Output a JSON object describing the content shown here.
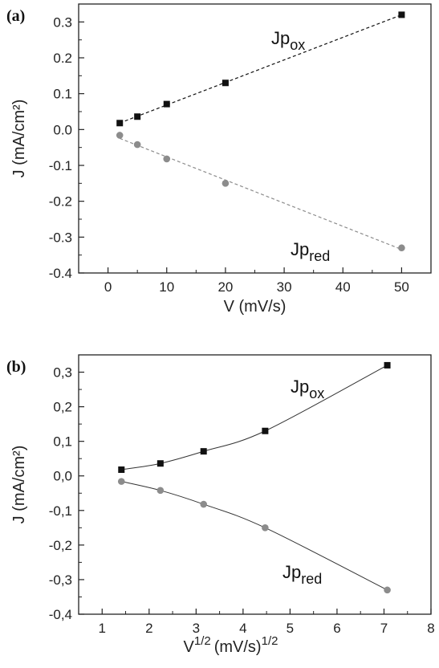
{
  "chart_data": [
    {
      "type": "scatter",
      "panel_label": "(a)",
      "xlabel": "V (mV/s)",
      "ylabel": "J (mA/cm²)",
      "xlim": [
        -5,
        55
      ],
      "ylim": [
        -0.4,
        0.35
      ],
      "xticks": [
        0,
        10,
        20,
        30,
        40,
        50
      ],
      "yticks": [
        -0.4,
        -0.3,
        -0.2,
        -0.1,
        0.0,
        0.1,
        0.2,
        0.3
      ],
      "xtick_labels": [
        "0",
        "10",
        "20",
        "30",
        "40",
        "50"
      ],
      "ytick_labels": [
        "-0.4",
        "-0.3",
        "-0.2",
        "-0.1",
        "0.0",
        "0.1",
        "0.2",
        "0.3"
      ],
      "fit": "linear-dashed",
      "series": [
        {
          "label_main": "Jp",
          "label_sub": "ox",
          "color": "#111111",
          "marker": "square",
          "x": [
            2,
            5,
            10,
            20,
            50
          ],
          "y": [
            0.018,
            0.036,
            0.071,
            0.13,
            0.32
          ]
        },
        {
          "label_main": "Jp",
          "label_sub": "red",
          "color": "#8c8c8c",
          "marker": "circle",
          "x": [
            2,
            5,
            10,
            20,
            50
          ],
          "y": [
            -0.016,
            -0.042,
            -0.082,
            -0.15,
            -0.33
          ]
        }
      ]
    },
    {
      "type": "scatter",
      "panel_label": "(b)",
      "xlabel_main": "V",
      "xlabel_sup": "1/2",
      "xlabel_unit": "(mV/s)",
      "xlabel_unit_sup": "1/2",
      "ylabel": "J (mA/cm²)",
      "xlim": [
        0.5,
        8
      ],
      "ylim": [
        -0.4,
        0.35
      ],
      "xticks": [
        1,
        2,
        3,
        4,
        5,
        6,
        7,
        8
      ],
      "yticks": [
        -0.4,
        -0.3,
        -0.2,
        -0.1,
        0.0,
        0.1,
        0.2,
        0.3
      ],
      "xtick_labels": [
        "1",
        "2",
        "3",
        "4",
        "5",
        "6",
        "7",
        "8"
      ],
      "ytick_labels": [
        "-0,4",
        "-0,3",
        "-0,2",
        "-0,1",
        "0,0",
        "0,1",
        "0,2",
        "0,3"
      ],
      "fit": "smooth-solid",
      "series": [
        {
          "label_main": "Jp",
          "label_sub": "ox",
          "color": "#111111",
          "marker": "square",
          "x": [
            1.41,
            2.24,
            3.16,
            4.47,
            7.07
          ],
          "y": [
            0.018,
            0.036,
            0.071,
            0.13,
            0.32
          ]
        },
        {
          "label_main": "Jp",
          "label_sub": "red",
          "color": "#8c8c8c",
          "marker": "circle",
          "x": [
            1.41,
            2.24,
            3.16,
            4.47,
            7.07
          ],
          "y": [
            -0.016,
            -0.042,
            -0.082,
            -0.15,
            -0.33
          ]
        }
      ]
    }
  ]
}
